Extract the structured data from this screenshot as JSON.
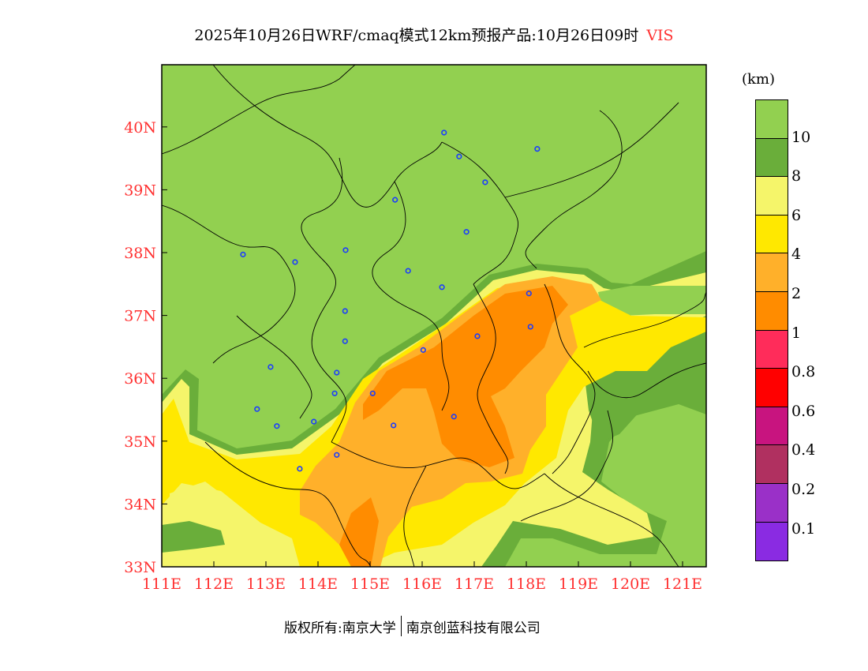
{
  "title": {
    "text": "2025年10月26日WRF/cmaq模式12km预报产品:10月26日09时",
    "variable": "VIS"
  },
  "legend": {
    "unit": "(km)",
    "colors": [
      "#92d050",
      "#6aae3a",
      "#f5f56a",
      "#ffe800",
      "#ffb02a",
      "#ff8c00",
      "#ff2c5a",
      "#ff0000",
      "#c8147f",
      "#b03060",
      "#9a30c8",
      "#8a2be2"
    ],
    "labels": [
      "10",
      "8",
      "6",
      "4",
      "2",
      "1",
      "0.8",
      "0.6",
      "0.4",
      "0.2",
      "0.1"
    ]
  },
  "axes": {
    "x_labels": [
      "111E",
      "112E",
      "113E",
      "114E",
      "115E",
      "116E",
      "117E",
      "118E",
      "119E",
      "120E",
      "121E"
    ],
    "y_labels": [
      "33N",
      "34N",
      "35N",
      "36N",
      "37N",
      "38N",
      "39N",
      "40N"
    ],
    "lon_range": [
      111,
      121.45
    ],
    "lat_range": [
      33,
      41
    ]
  },
  "stations": [
    [
      116.42,
      39.91
    ],
    [
      116.71,
      39.53
    ],
    [
      117.21,
      39.12
    ],
    [
      118.21,
      39.65
    ],
    [
      115.48,
      38.84
    ],
    [
      116.85,
      38.33
    ],
    [
      112.56,
      37.97
    ],
    [
      113.56,
      37.85
    ],
    [
      114.53,
      38.04
    ],
    [
      115.73,
      37.71
    ],
    [
      116.38,
      37.45
    ],
    [
      114.52,
      37.07
    ],
    [
      114.52,
      36.59
    ],
    [
      118.05,
      37.35
    ],
    [
      118.08,
      36.82
    ],
    [
      117.06,
      36.67
    ],
    [
      116.02,
      36.45
    ],
    [
      113.09,
      36.18
    ],
    [
      114.36,
      36.09
    ],
    [
      114.32,
      35.76
    ],
    [
      115.05,
      35.76
    ],
    [
      112.83,
      35.51
    ],
    [
      113.21,
      35.24
    ],
    [
      113.92,
      35.31
    ],
    [
      115.45,
      35.25
    ],
    [
      116.61,
      35.39
    ],
    [
      114.36,
      34.78
    ],
    [
      113.65,
      34.56
    ]
  ],
  "footer": {
    "left": "版权所有:南京大学",
    "right": "南京创蓝科技有限公司"
  }
}
